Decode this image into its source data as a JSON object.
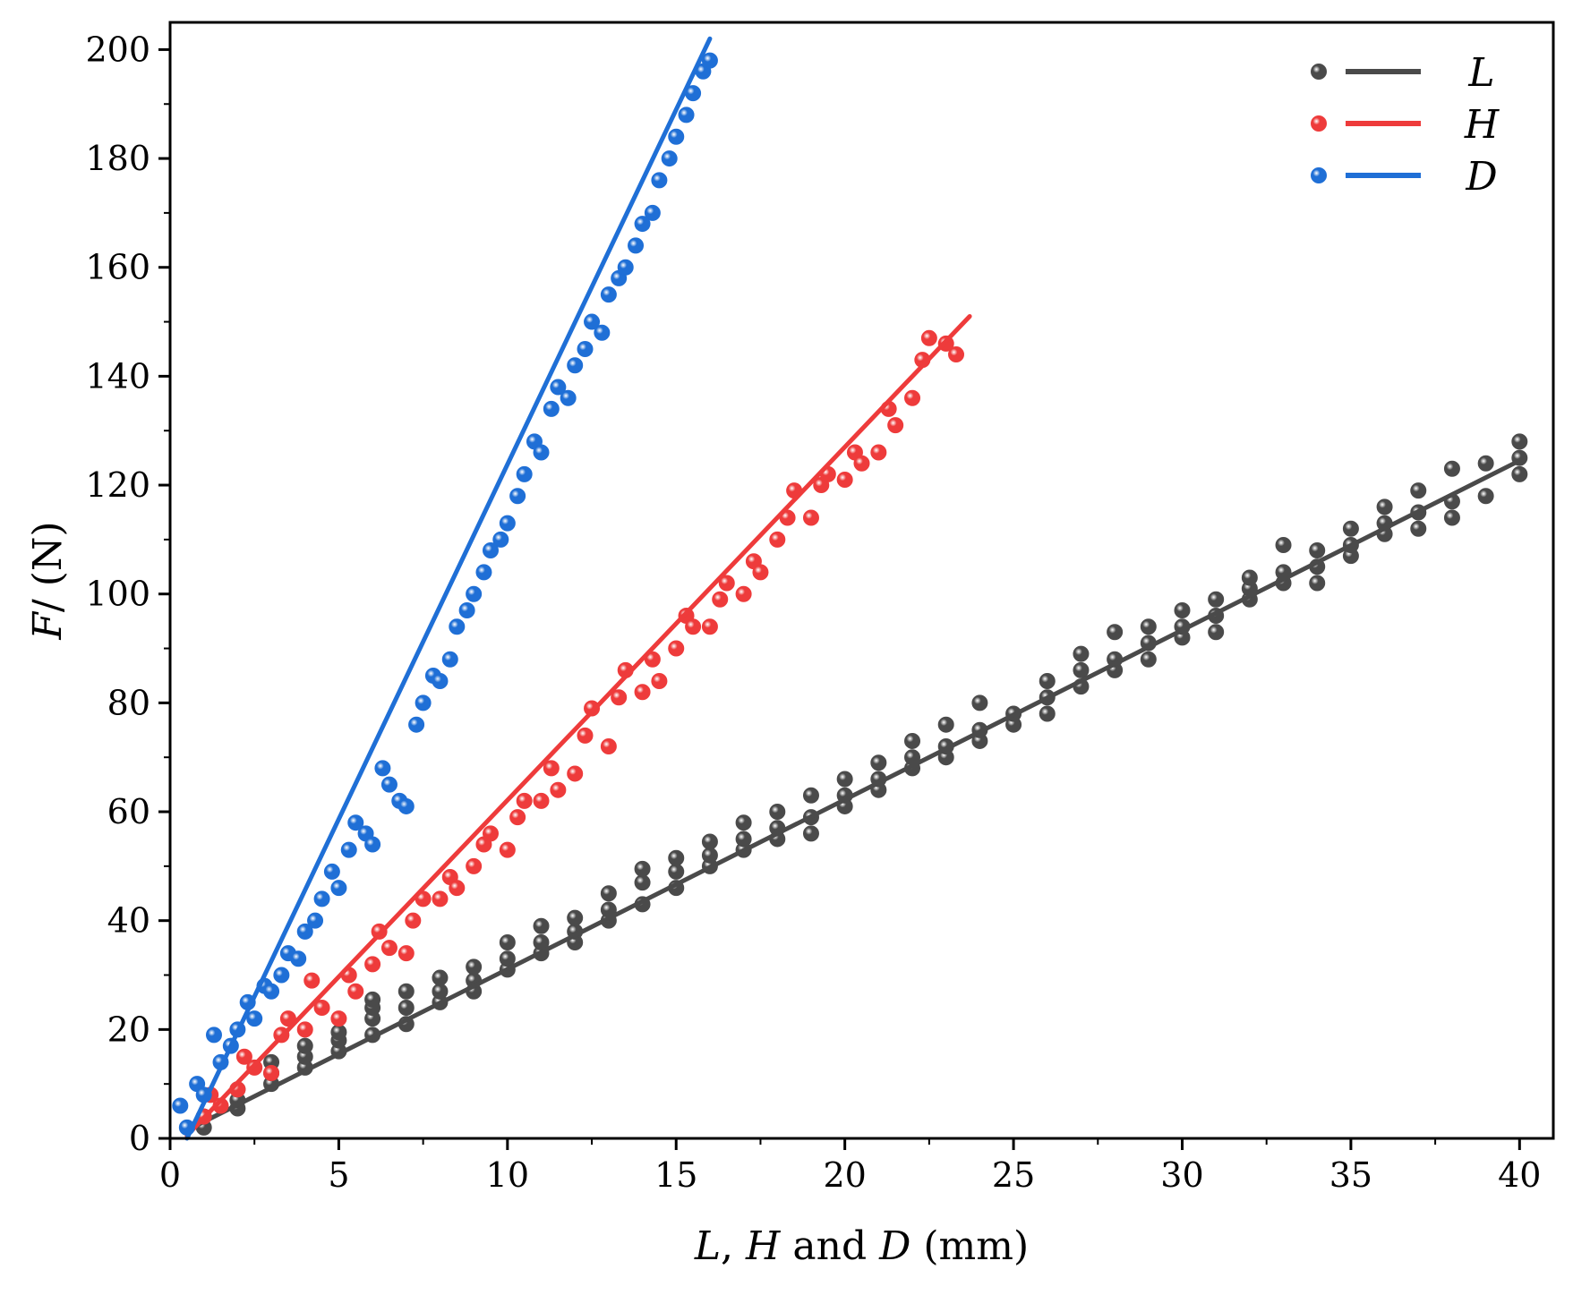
{
  "chart_data": {
    "type": "scatter",
    "title": "",
    "xlabel": {
      "parts": [
        {
          "text": "L",
          "italic": true
        },
        {
          "text": ", ",
          "italic": false
        },
        {
          "text": "H",
          "italic": true
        },
        {
          "text": " and ",
          "italic": false
        },
        {
          "text": "D",
          "italic": true
        },
        {
          "text": " (mm)",
          "italic": false
        }
      ]
    },
    "ylabel": {
      "parts": [
        {
          "text": "F",
          "italic": true
        },
        {
          "text": "/ (N)",
          "italic": false
        }
      ]
    },
    "xlim": [
      0,
      41
    ],
    "ylim": [
      0,
      205
    ],
    "xticks": [
      0,
      5,
      10,
      15,
      20,
      25,
      30,
      35,
      40
    ],
    "yticks": [
      0,
      20,
      40,
      60,
      80,
      100,
      120,
      140,
      160,
      180,
      200
    ],
    "legend_position": "top-right",
    "series": [
      {
        "name": "L",
        "color": "#4a4a4a",
        "fit": {
          "x": [
            0.5,
            40
          ],
          "y": [
            1.5,
            124.5
          ]
        },
        "points": {
          "x": [
            1,
            1,
            2,
            2,
            2,
            3,
            3,
            3,
            4,
            4,
            4,
            5,
            5,
            5,
            6,
            6,
            6,
            6,
            7,
            7,
            7,
            8,
            8,
            8,
            9,
            9,
            9,
            10,
            10,
            10,
            11,
            11,
            11,
            12,
            12,
            12,
            13,
            13,
            13,
            14,
            14,
            14,
            15,
            15,
            15,
            16,
            16,
            16,
            17,
            17,
            17,
            18,
            18,
            18,
            19,
            19,
            19,
            20,
            20,
            20,
            21,
            21,
            21,
            22,
            22,
            22,
            23,
            23,
            23,
            24,
            24,
            24,
            25,
            25,
            26,
            26,
            26,
            27,
            27,
            27,
            28,
            28,
            28,
            29,
            29,
            29,
            30,
            30,
            30,
            31,
            31,
            31,
            32,
            32,
            32,
            33,
            33,
            33,
            34,
            34,
            34,
            35,
            35,
            35,
            36,
            36,
            36,
            37,
            37,
            37,
            38,
            38,
            38,
            39,
            39,
            40,
            40,
            40
          ],
          "y": [
            2,
            4,
            5.5,
            7,
            9,
            10,
            12,
            14,
            13,
            15,
            17,
            16,
            18,
            19.5,
            19,
            22,
            24,
            25.5,
            21,
            24,
            27,
            25,
            27,
            29.5,
            27,
            29,
            31.5,
            31,
            33,
            36,
            34,
            36,
            39,
            36,
            38,
            40.5,
            40,
            42,
            45,
            43,
            47,
            49.5,
            46,
            49,
            51.5,
            50,
            52,
            54.5,
            53,
            55,
            58,
            55,
            57,
            60,
            56,
            59,
            63,
            61,
            63,
            66,
            64,
            66,
            69,
            68,
            70,
            73,
            70,
            72,
            76,
            73,
            75,
            80,
            76,
            78,
            78,
            81,
            84,
            83,
            86,
            89,
            86,
            88,
            93,
            88,
            91,
            94,
            92,
            94,
            97,
            93,
            96,
            99,
            99,
            101,
            103,
            102,
            104,
            109,
            102,
            105,
            108,
            107,
            109,
            112,
            111,
            113,
            116,
            112,
            115,
            119,
            114,
            117,
            123,
            118,
            124,
            122,
            125,
            128
          ]
        }
      },
      {
        "name": "H",
        "color": "#ee3b3b",
        "fit": {
          "x": [
            0.5,
            23.7
          ],
          "y": [
            0.5,
            151
          ]
        },
        "points": {
          "x": [
            1,
            1.2,
            1.5,
            2,
            2.2,
            2.5,
            3,
            3.3,
            3.5,
            4,
            4.2,
            4.5,
            5,
            5.3,
            5.5,
            6,
            6.2,
            6.5,
            7,
            7.2,
            7.5,
            8,
            8.3,
            8.5,
            9,
            9.3,
            9.5,
            10,
            10.3,
            10.5,
            11,
            11.3,
            11.5,
            12,
            12.3,
            12.5,
            13,
            13.3,
            13.5,
            14,
            14.3,
            14.5,
            15,
            15.3,
            15.5,
            16,
            16.3,
            16.5,
            17,
            17.3,
            17.5,
            18,
            18.3,
            18.5,
            19,
            19.3,
            19.5,
            20,
            20.3,
            20.5,
            21,
            21.3,
            21.5,
            22,
            22.3,
            22.5,
            23,
            23.3
          ],
          "y": [
            4,
            8,
            6,
            9,
            15,
            13,
            12,
            19,
            22,
            20,
            29,
            24,
            22,
            30,
            27,
            32,
            38,
            35,
            34,
            40,
            44,
            44,
            48,
            46,
            50,
            54,
            56,
            53,
            59,
            62,
            62,
            68,
            64,
            67,
            74,
            79,
            72,
            81,
            86,
            82,
            88,
            84,
            90,
            96,
            94,
            94,
            99,
            102,
            100,
            106,
            104,
            110,
            114,
            119,
            114,
            120,
            122,
            121,
            126,
            124,
            126,
            134,
            131,
            136,
            143,
            147,
            146,
            144
          ]
        }
      },
      {
        "name": "D",
        "color": "#1f6fd6",
        "fit": {
          "x": [
            0.5,
            16
          ],
          "y": [
            0,
            202
          ]
        },
        "points": {
          "x": [
            0.3,
            0.5,
            0.8,
            1,
            1.3,
            1.5,
            1.8,
            2,
            2.3,
            2.5,
            2.8,
            3,
            3.3,
            3.5,
            3.8,
            4,
            4.3,
            4.5,
            4.8,
            5,
            5.3,
            5.5,
            5.8,
            6,
            6.3,
            6.5,
            6.8,
            7,
            7.3,
            7.5,
            7.8,
            8,
            8.3,
            8.5,
            8.8,
            9,
            9.3,
            9.5,
            9.8,
            10,
            10.3,
            10.5,
            10.8,
            11,
            11.3,
            11.5,
            11.8,
            12,
            12.3,
            12.5,
            12.8,
            13,
            13.3,
            13.5,
            13.8,
            14,
            14.3,
            14.5,
            14.8,
            15,
            15.3,
            15.5,
            15.8,
            16
          ],
          "y": [
            6,
            2,
            10,
            8,
            19,
            14,
            17,
            20,
            25,
            22,
            28,
            27,
            30,
            34,
            33,
            38,
            40,
            44,
            49,
            46,
            53,
            58,
            56,
            54,
            68,
            65,
            62,
            61,
            76,
            80,
            85,
            84,
            88,
            94,
            97,
            100,
            104,
            108,
            110,
            113,
            118,
            122,
            128,
            126,
            134,
            138,
            136,
            142,
            145,
            150,
            148,
            155,
            158,
            160,
            164,
            168,
            170,
            176,
            180,
            184,
            188,
            192,
            196,
            198
          ]
        }
      }
    ]
  }
}
